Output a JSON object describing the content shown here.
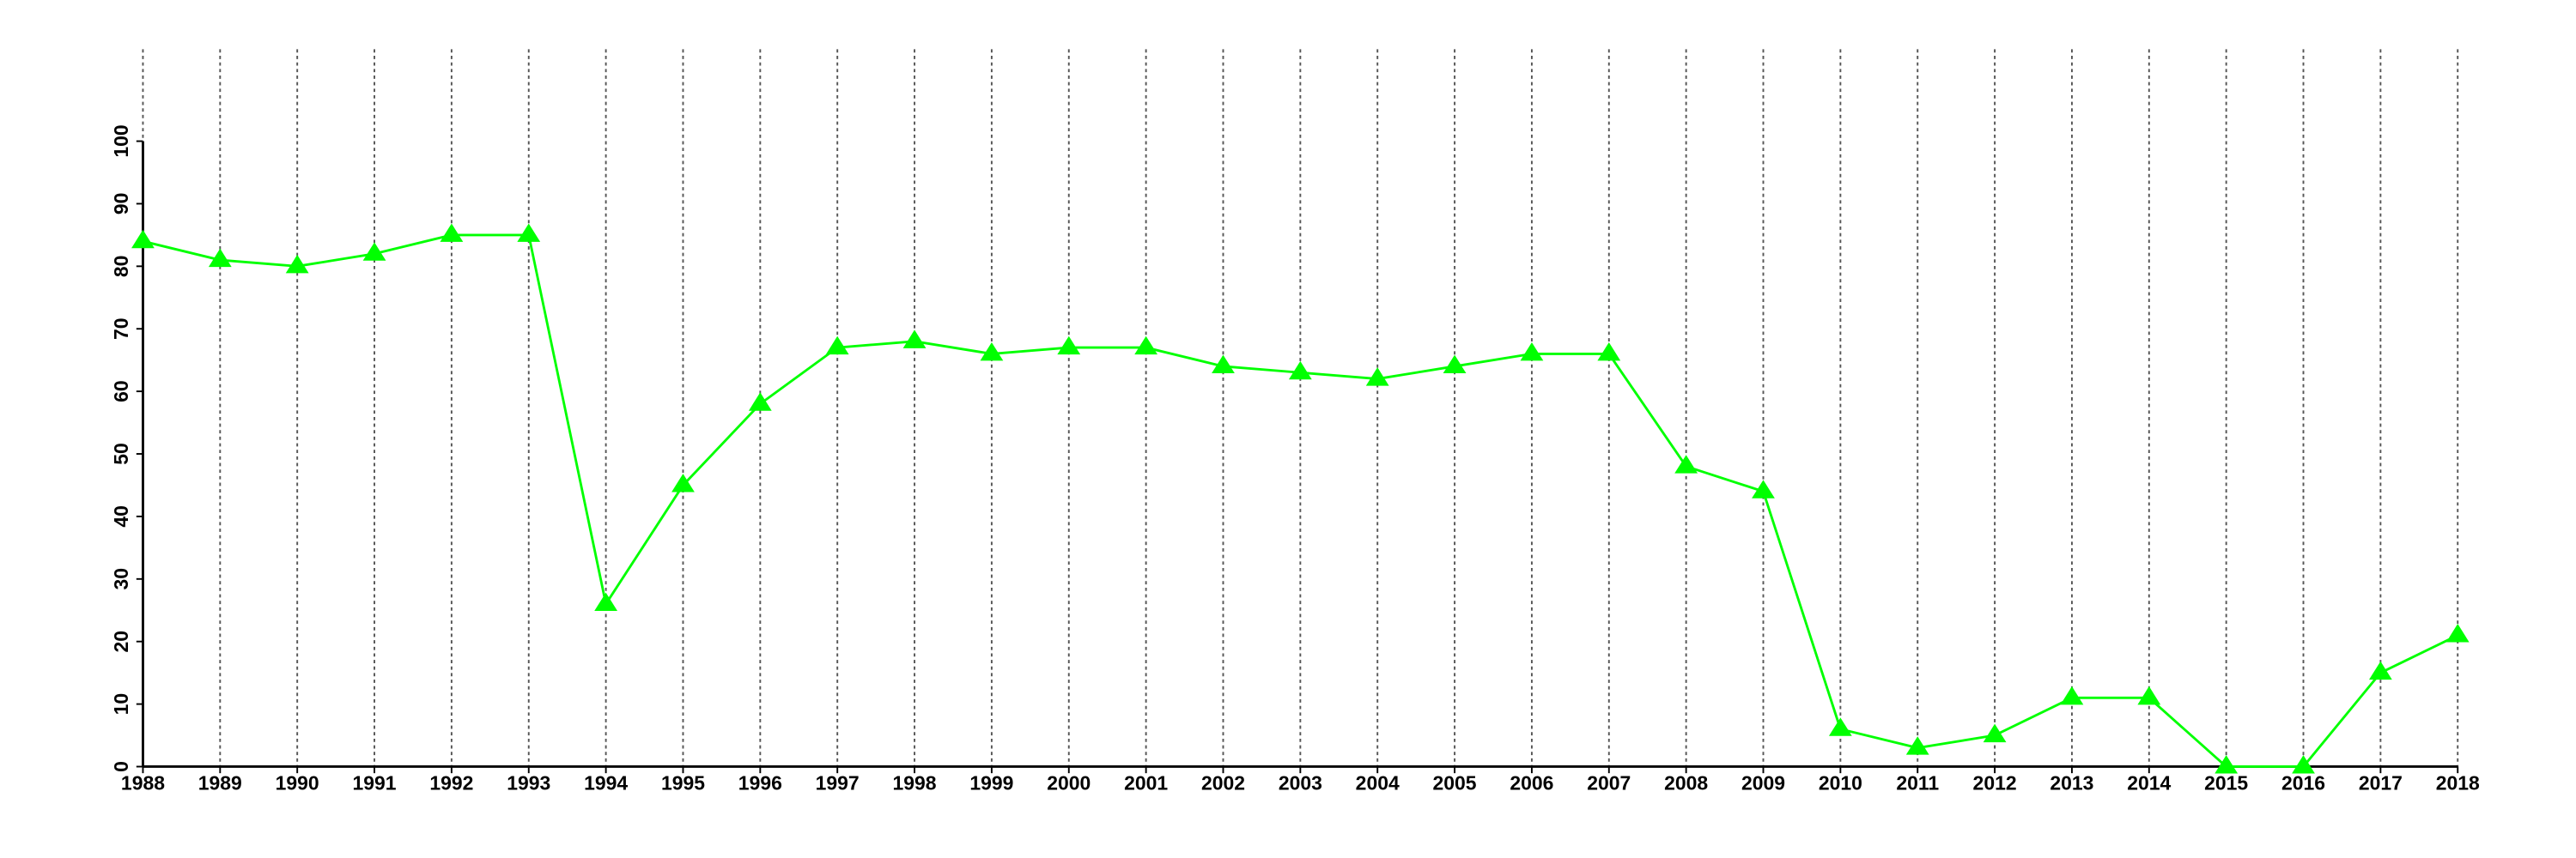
{
  "chart_data": {
    "type": "line",
    "x": [
      1988,
      1989,
      1990,
      1991,
      1992,
      1993,
      1994,
      1995,
      1996,
      1997,
      1998,
      1999,
      2000,
      2001,
      2002,
      2003,
      2004,
      2005,
      2006,
      2007,
      2008,
      2009,
      2010,
      2011,
      2012,
      2013,
      2014,
      2015,
      2016,
      2017,
      2018
    ],
    "series": [
      {
        "color": "#00ff00",
        "marker": "triangle",
        "values": [
          84,
          81,
          80,
          82,
          85,
          85,
          26,
          45,
          58,
          67,
          68,
          66,
          67,
          67,
          64,
          63,
          62,
          64,
          66,
          66,
          48,
          44,
          6,
          3,
          5,
          11,
          11,
          0,
          0,
          15,
          21
        ]
      }
    ],
    "xlim": [
      1988,
      2018
    ],
    "xticks": [
      1988,
      1989,
      1990,
      1991,
      1992,
      1993,
      1994,
      1995,
      1996,
      1997,
      1998,
      1999,
      2000,
      2001,
      2002,
      2003,
      2004,
      2005,
      2006,
      2007,
      2008,
      2009,
      2010,
      2011,
      2012,
      2013,
      2014,
      2015,
      2016,
      2017,
      2018
    ],
    "ylim": [
      0,
      100
    ],
    "yticks": [
      0,
      10,
      20,
      30,
      40,
      50,
      60,
      70,
      80,
      90,
      100
    ],
    "grid": "x"
  }
}
